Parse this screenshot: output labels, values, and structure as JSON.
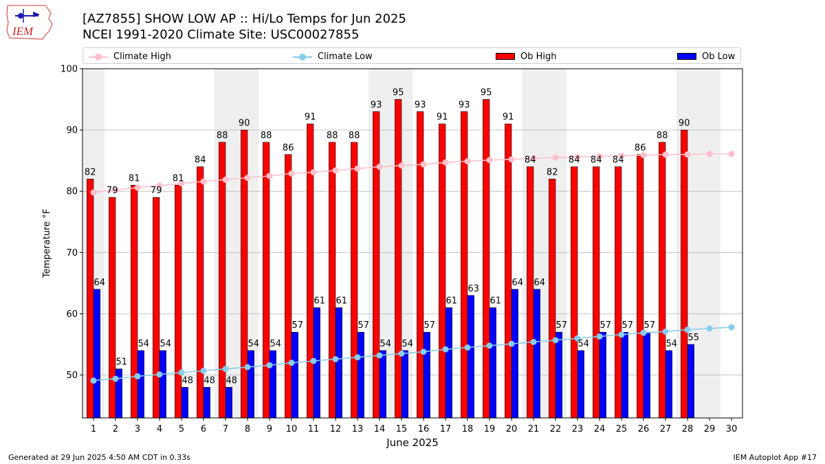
{
  "header": {
    "title_line1": "[AZ7855] SHOW LOW AP :: Hi/Lo Temps for Jun 2025",
    "title_line2": "NCEI 1991-2020 Climate Site: USC00027855",
    "logo_text": "IEM"
  },
  "footer": {
    "left": "Generated at 29 Jun 2025 4:50 AM CDT in 0.33s",
    "right": "IEM Autoplot App #17"
  },
  "legend": [
    {
      "label": "Climate High",
      "kind": "line",
      "color": "#ffc0cb"
    },
    {
      "label": "Climate Low",
      "kind": "line",
      "color": "#87ceeb"
    },
    {
      "label": "Ob High",
      "kind": "bar",
      "color": "#ff0000"
    },
    {
      "label": "Ob Low",
      "kind": "bar",
      "color": "#0000ff"
    }
  ],
  "chart_data": {
    "type": "bar",
    "xlabel": "June 2025",
    "ylabel": "Temperature °F",
    "ylim": [
      43,
      100
    ],
    "yticks": [
      50,
      60,
      70,
      80,
      90,
      100
    ],
    "days": [
      1,
      2,
      3,
      4,
      5,
      6,
      7,
      8,
      9,
      10,
      11,
      12,
      13,
      14,
      15,
      16,
      17,
      18,
      19,
      20,
      21,
      22,
      23,
      24,
      25,
      26,
      27,
      28,
      29,
      30
    ],
    "weekend_days": [
      1,
      7,
      8,
      14,
      15,
      21,
      22,
      28,
      29
    ],
    "grid": "horizontal",
    "legend_position": "top",
    "series": [
      {
        "name": "Ob High",
        "kind": "bar",
        "color": "#ff0000",
        "values": [
          82,
          79,
          81,
          79,
          81,
          84,
          88,
          90,
          88,
          86,
          91,
          88,
          88,
          93,
          95,
          93,
          91,
          93,
          95,
          91,
          84,
          82,
          84,
          84,
          84,
          86,
          88,
          90
        ]
      },
      {
        "name": "Ob Low",
        "kind": "bar",
        "color": "#0000ff",
        "values": [
          64,
          51,
          54,
          54,
          48,
          48,
          48,
          54,
          54,
          57,
          61,
          61,
          57,
          54,
          54,
          57,
          61,
          63,
          61,
          64,
          64,
          57,
          54,
          57,
          57,
          57,
          54,
          55
        ]
      },
      {
        "name": "Climate High",
        "kind": "line",
        "color": "#ffc0cb",
        "values": [
          79.8,
          80.2,
          80.6,
          80.9,
          81.3,
          81.6,
          81.9,
          82.2,
          82.5,
          82.9,
          83.1,
          83.4,
          83.7,
          84.0,
          84.2,
          84.4,
          84.7,
          84.9,
          85.1,
          85.2,
          85.4,
          85.5,
          85.6,
          85.7,
          85.8,
          85.9,
          86.0,
          86.0,
          86.1,
          86.1
        ]
      },
      {
        "name": "Climate Low",
        "kind": "line",
        "color": "#87ceeb",
        "values": [
          49.1,
          49.4,
          49.8,
          50.1,
          50.4,
          50.7,
          51.0,
          51.3,
          51.6,
          52.0,
          52.3,
          52.6,
          52.9,
          53.2,
          53.5,
          53.8,
          54.2,
          54.5,
          54.8,
          55.1,
          55.4,
          55.7,
          56.0,
          56.3,
          56.6,
          56.9,
          57.1,
          57.4,
          57.6,
          57.8
        ]
      }
    ]
  }
}
